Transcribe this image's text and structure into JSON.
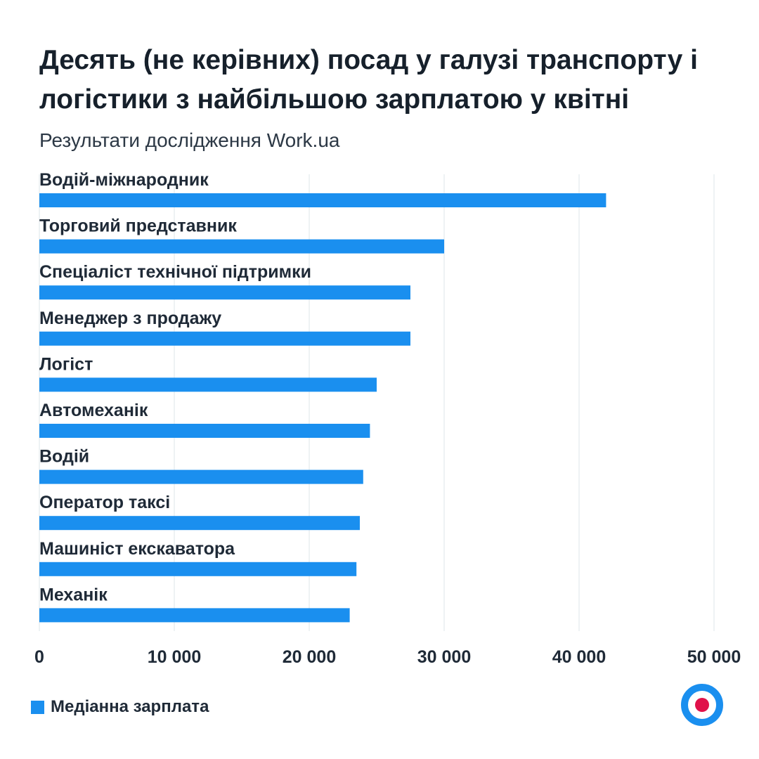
{
  "title": "Десять (не керівних) посад у галузі транспорту і логістики з найбільшою зарплатою у квітні",
  "subtitle": "Результати дослідження Work.ua",
  "colors": {
    "bar": "#1a8fef",
    "grid": "#e9edf1",
    "text": "#1f2a37",
    "logo_ring": "#1a8fef",
    "logo_dot": "#e0114a"
  },
  "icons": {
    "brand_logo": "work-ua-logo-icon"
  },
  "chart_data": {
    "type": "bar",
    "orientation": "horizontal",
    "categories": [
      "Водій-міжнародник",
      "Торговий представник",
      "Спеціаліст технічної підтримки",
      "Менеджер з продажу",
      "Логіст",
      "Автомеханік",
      "Водій",
      "Оператор таксі",
      "Машиніст екскаватора",
      "Механік"
    ],
    "series": [
      {
        "name": "Медіанна зарплата",
        "values": [
          42000,
          30000,
          27500,
          27500,
          25000,
          24500,
          24000,
          23750,
          23500,
          23000
        ]
      }
    ],
    "xlim": [
      0,
      50000
    ],
    "xticks": [
      0,
      10000,
      20000,
      30000,
      40000,
      50000
    ],
    "xtick_labels": [
      "0",
      "10 000",
      "20 000",
      "30 000",
      "40 000",
      "50 000"
    ],
    "grid": true,
    "legend": "bottom-left"
  }
}
